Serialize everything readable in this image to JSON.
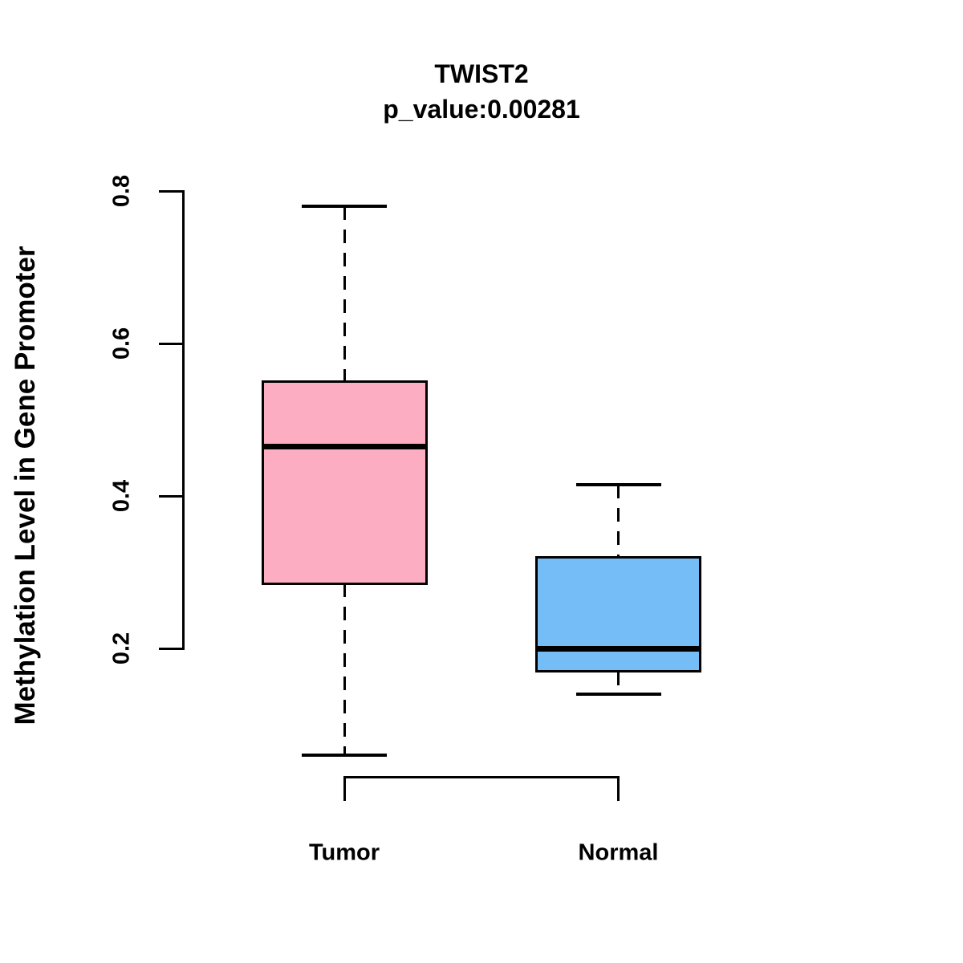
{
  "chart_data": {
    "type": "boxplot",
    "title": "TWIST2",
    "subtitle": "p_value:0.00281",
    "ylabel": "Methylation Level in Gene Promoter",
    "xlabel": "",
    "grid": false,
    "legend": "none",
    "ylim": [
      0.05,
      0.8
    ],
    "yticks": [
      {
        "value": 0.2,
        "label": "0.2"
      },
      {
        "value": 0.4,
        "label": "0.4"
      },
      {
        "value": 0.6,
        "label": "0.6"
      },
      {
        "value": 0.8,
        "label": "0.8"
      }
    ],
    "groups": [
      {
        "label": "Tumor",
        "color": "#FCADC1",
        "whisker_low": 0.06,
        "q1": 0.285,
        "median": 0.465,
        "q3": 0.55,
        "whisker_high": 0.78
      },
      {
        "label": "Normal",
        "color": "#74BDF7",
        "whisker_low": 0.14,
        "q1": 0.17,
        "median": 0.2,
        "q3": 0.32,
        "whisker_high": 0.415
      }
    ],
    "colors": {
      "line": "#000000",
      "median": "#000000",
      "background": "#FFFFFF"
    }
  }
}
